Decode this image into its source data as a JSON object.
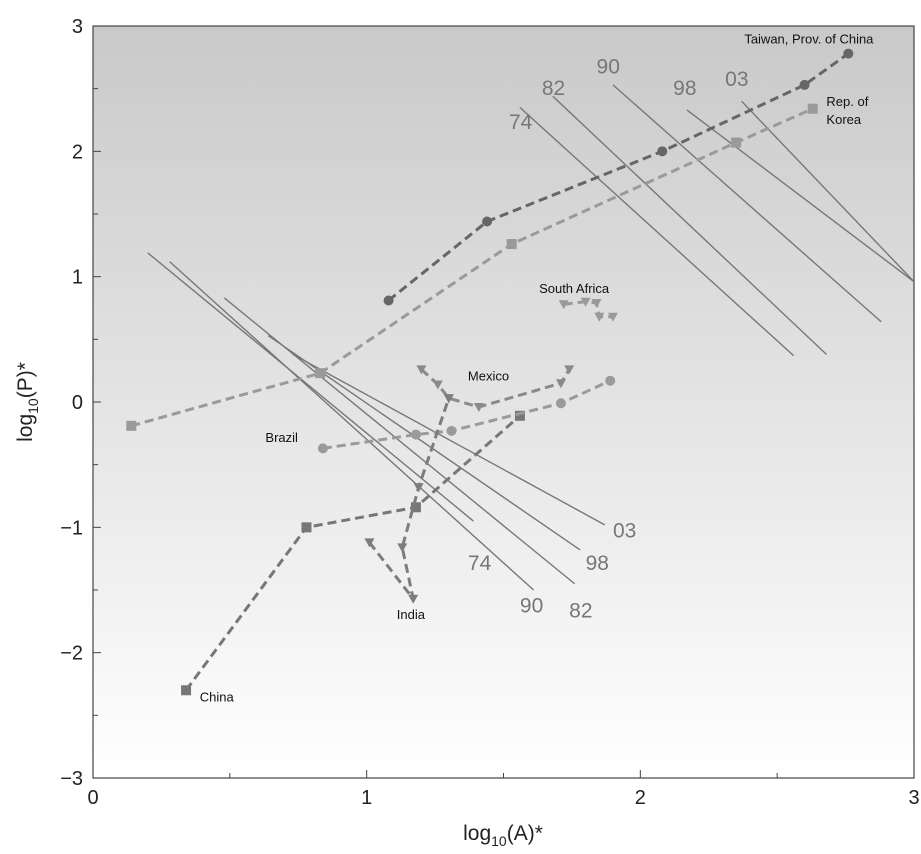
{
  "chart_data": {
    "type": "line",
    "title": "",
    "xlabel": "log10(A)*",
    "ylabel": "log10(P)*",
    "xlim": [
      0,
      3
    ],
    "ylim": [
      -3,
      3
    ],
    "x_ticks": [
      0,
      1,
      2,
      3
    ],
    "y_ticks": [
      -3,
      -2,
      -1,
      0,
      1,
      2,
      3
    ],
    "background": "gradient grey (top) to white (bottom)",
    "series": [
      {
        "name": "Taiwan, Prov. of China",
        "color": "#666666",
        "marker": "circle",
        "x": [
          1.08,
          1.44,
          2.08,
          2.6,
          2.76
        ],
        "y": [
          0.81,
          1.44,
          2.0,
          2.53,
          2.78
        ]
      },
      {
        "name": "Rep. of Korea",
        "color": "#9a9a9a",
        "marker": "square",
        "x": [
          0.14,
          0.83,
          1.53,
          2.35,
          2.63
        ],
        "y": [
          -0.19,
          0.23,
          1.26,
          2.07,
          2.34
        ]
      },
      {
        "name": "China",
        "color": "#777777",
        "marker": "square",
        "x": [
          0.34,
          0.78,
          1.18,
          1.56
        ],
        "y": [
          -2.3,
          -1.0,
          -0.84,
          -0.11
        ]
      },
      {
        "name": "Brazil",
        "color": "#9a9a9a",
        "marker": "circle",
        "x": [
          0.84,
          1.18,
          1.31,
          1.71,
          1.89
        ],
        "y": [
          -0.37,
          -0.26,
          -0.23,
          -0.01,
          0.17
        ]
      },
      {
        "name": "Mexico",
        "color": "#8a8a8a",
        "marker": "triangle",
        "x": [
          1.2,
          1.26,
          1.3,
          1.41,
          1.71,
          1.74
        ],
        "y": [
          0.26,
          0.14,
          0.03,
          -0.04,
          0.15,
          0.26
        ]
      },
      {
        "name": "India",
        "color": "#7d7d7d",
        "marker": "triangle",
        "x": [
          1.01,
          1.17,
          1.13,
          1.19,
          1.3
        ],
        "y": [
          -1.12,
          -1.57,
          -1.16,
          -0.68,
          0.03
        ]
      },
      {
        "name": "South Africa",
        "color": "#9a9a9a",
        "marker": "triangle",
        "x": [
          1.72,
          1.8,
          1.84,
          1.85,
          1.9
        ],
        "y": [
          0.78,
          0.8,
          0.79,
          0.68,
          0.68
        ]
      }
    ],
    "isolines": [
      {
        "label": "74",
        "x1": 1.56,
        "y1": 2.35,
        "x2": 2.56,
        "y2": 0.37
      },
      {
        "label": "82",
        "x1": 1.68,
        "y1": 2.44,
        "x2": 2.68,
        "y2": 0.38
      },
      {
        "label": "90",
        "x1": 1.9,
        "y1": 2.53,
        "x2": 2.88,
        "y2": 0.64
      },
      {
        "label": "98",
        "x1": 2.17,
        "y1": 2.33,
        "x2": 3.0,
        "y2": 0.96
      },
      {
        "label": "03",
        "x1": 2.37,
        "y1": 2.4,
        "x2": 3.0,
        "y2": 0.96
      },
      {
        "label": "74",
        "x1": 0.2,
        "y1": 1.19,
        "x2": 1.39,
        "y2": -0.95
      },
      {
        "label": "90",
        "x1": 0.28,
        "y1": 1.12,
        "x2": 1.61,
        "y2": -1.5
      },
      {
        "label": "82",
        "x1": 0.48,
        "y1": 0.83,
        "x2": 1.76,
        "y2": -1.45
      },
      {
        "label": "98",
        "x1": 0.64,
        "y1": 0.53,
        "x2": 1.78,
        "y2": -1.18
      },
      {
        "label": "03",
        "x1": 0.73,
        "y1": 0.38,
        "x2": 1.87,
        "y2": -0.98
      }
    ],
    "isoline_labels": [
      {
        "text": "74",
        "x": 1.52,
        "y": 2.18
      },
      {
        "text": "82",
        "x": 1.64,
        "y": 2.45
      },
      {
        "text": "90",
        "x": 1.84,
        "y": 2.62
      },
      {
        "text": "98",
        "x": 2.12,
        "y": 2.45
      },
      {
        "text": "03",
        "x": 2.31,
        "y": 2.52
      },
      {
        "text": "74",
        "x": 1.37,
        "y": -1.34
      },
      {
        "text": "90",
        "x": 1.56,
        "y": -1.68
      },
      {
        "text": "82",
        "x": 1.74,
        "y": -1.72
      },
      {
        "text": "98",
        "x": 1.8,
        "y": -1.34
      },
      {
        "text": "03",
        "x": 1.9,
        "y": -1.08
      }
    ],
    "series_labels": [
      {
        "text": "Taiwan, Prov. of China",
        "x": 2.38,
        "y": 2.86
      },
      {
        "text": "Rep. of",
        "x": 2.68,
        "y": 2.36
      },
      {
        "text": "Korea",
        "x": 2.68,
        "y": 2.22
      },
      {
        "text": "South Africa",
        "x": 1.63,
        "y": 0.87
      },
      {
        "text": "Mexico",
        "x": 1.37,
        "y": 0.17
      },
      {
        "text": "Brazil",
        "x": 0.63,
        "y": -0.32
      },
      {
        "text": "India",
        "x": 1.11,
        "y": -1.73
      },
      {
        "text": "China",
        "x": 0.39,
        "y": -2.39
      }
    ]
  }
}
